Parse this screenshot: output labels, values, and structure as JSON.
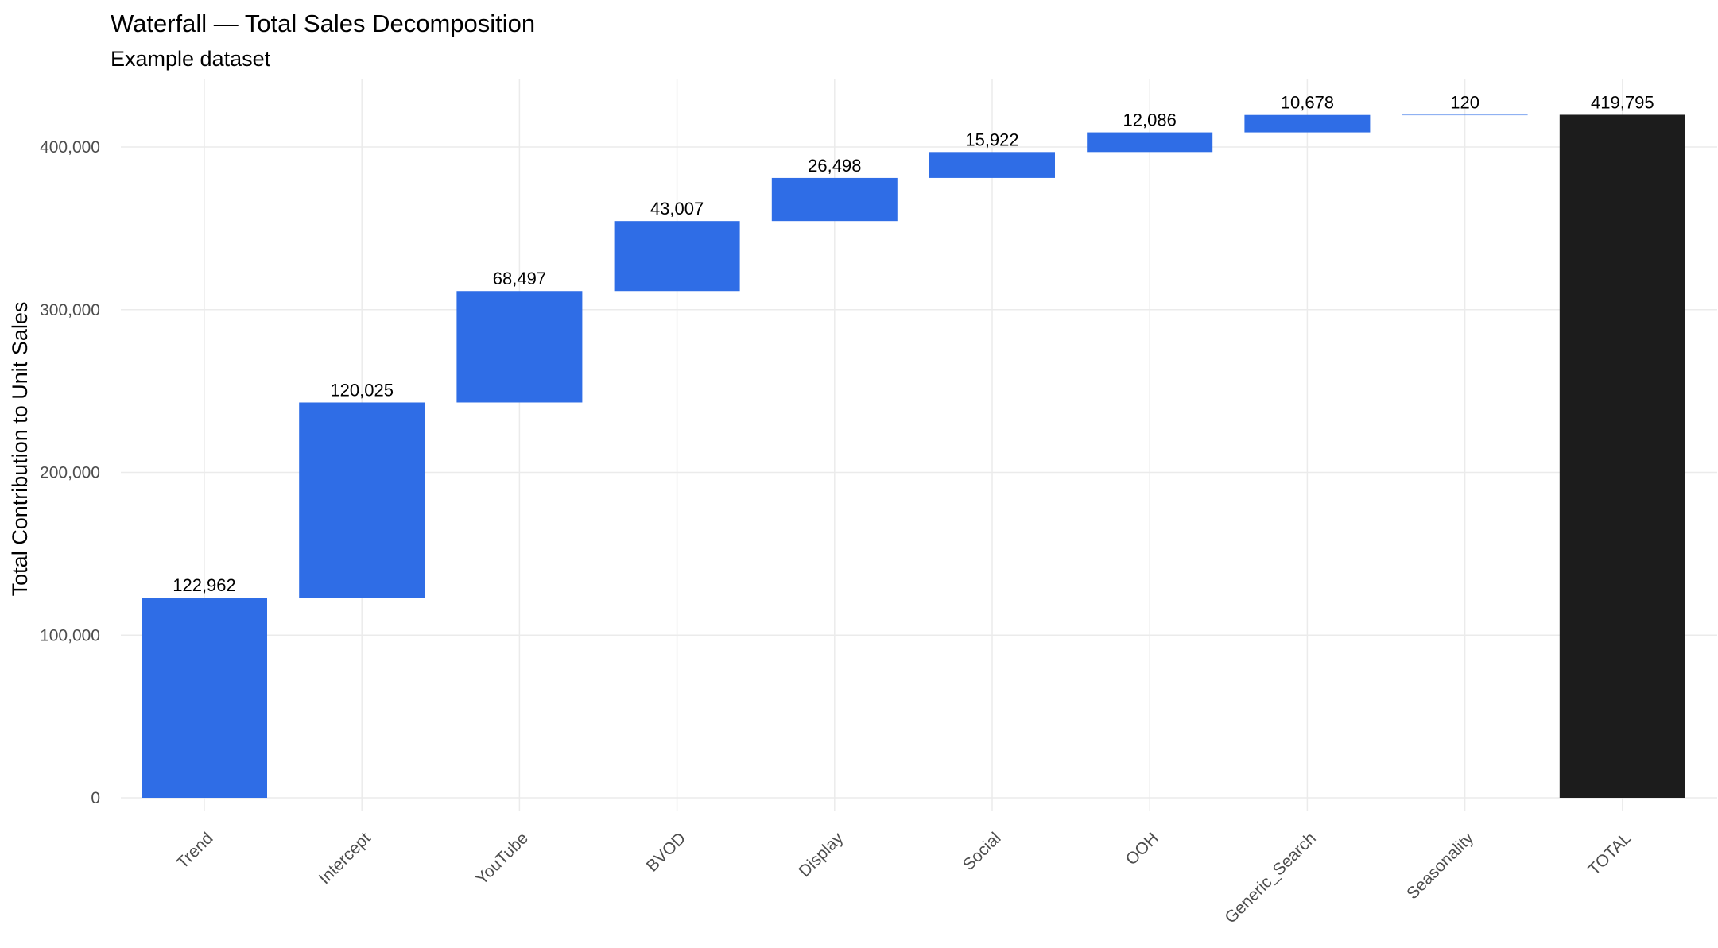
{
  "chart_data": {
    "type": "bar",
    "subtype": "waterfall",
    "title": "Waterfall — Total Sales Decomposition",
    "subtitle": "Example dataset",
    "xlabel": "",
    "ylabel": "Total Contribution to Unit Sales",
    "ylim": [
      -15000,
      440000
    ],
    "yticks": [
      0,
      100000,
      200000,
      300000,
      400000
    ],
    "ytick_labels": [
      "0",
      "100,000",
      "200,000",
      "300,000",
      "400,000"
    ],
    "grid": true,
    "legend": "none",
    "categories": [
      "Trend",
      "Intercept",
      "YouTube",
      "BVOD",
      "Display",
      "Social",
      "OOH",
      "Generic_Search",
      "Seasonality",
      "TOTAL"
    ],
    "values": [
      122962,
      120025,
      68497,
      43007,
      26498,
      15922,
      12086,
      10678,
      120,
      419795
    ],
    "value_labels": [
      "122,962",
      "120,025",
      "68,497",
      "43,007",
      "26,498",
      "15,922",
      "12,086",
      "10,678",
      "120",
      "419,795"
    ],
    "total_index": 9,
    "colors": {
      "increase": "#2f6de6",
      "total": "#1c1c1c"
    }
  }
}
